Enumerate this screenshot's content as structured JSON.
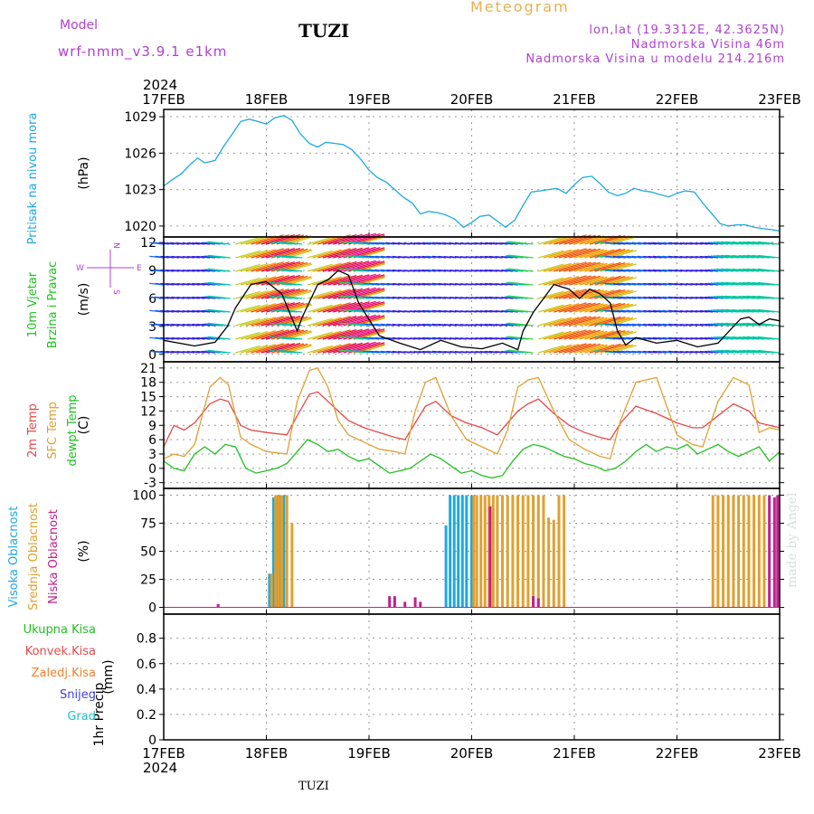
{
  "header": {
    "model_label": "Model",
    "model_name": "wrf-nmm_v3.9.1  e1km",
    "station": "TUZI",
    "meteogram": "Meteogram",
    "lonlat": "lon,lat (19.3312E, 42.3625N)",
    "elevation": "Nadmorska Visina 46m",
    "model_elevation": "Nadmorska Visina u modelu 214.216m",
    "footer_station": "TUZI",
    "made_by": "made by Angel"
  },
  "colors": {
    "pressure": "#1ea8e0",
    "t2m": "#e84848",
    "sfc": "#e0a030",
    "dewpt": "#20c020",
    "high_cloud": "#1ea8e0",
    "mid_cloud": "#e0a030",
    "low_cloud": "#c02090",
    "total_precip": "#20c020",
    "conv_precip": "#e84848",
    "frz_precip": "#f08030",
    "snow": "#4040e0",
    "hail": "#20c0c0"
  },
  "chart_data": {
    "type": "line",
    "x_year": "2024",
    "x_ticks": [
      "17FEB",
      "18FEB",
      "19FEB",
      "20FEB",
      "21FEB",
      "22FEB",
      "23FEB"
    ],
    "x_days": [
      0,
      1,
      2,
      3,
      4,
      5,
      6
    ],
    "panels": [
      {
        "id": "pressure",
        "ylabel_lines": [
          "Pritisak na nivou mora"
        ],
        "units": "(hPa)",
        "ylim": [
          1019.1,
          1029.6
        ],
        "yticks": [
          1020,
          1023,
          1026,
          1029
        ],
        "series": [
          {
            "key": "pressure",
            "x": [
              0,
              0.08,
              0.17,
              0.25,
              0.33,
              0.4,
              0.5,
              0.58,
              0.67,
              0.75,
              0.83,
              0.92,
              1.0,
              1.08,
              1.17,
              1.25,
              1.33,
              1.42,
              1.5,
              1.58,
              1.67,
              1.75,
              1.83,
              1.92,
              2.0,
              2.08,
              2.17,
              2.25,
              2.33,
              2.42,
              2.5,
              2.58,
              2.67,
              2.75,
              2.83,
              2.92,
              3.0,
              3.08,
              3.17,
              3.25,
              3.33,
              3.42,
              3.5,
              3.58,
              3.67,
              3.75,
              3.83,
              3.92,
              4.0,
              4.08,
              4.17,
              4.25,
              4.33,
              4.42,
              4.5,
              4.58,
              4.67,
              4.75,
              4.83,
              4.92,
              5.0,
              5.08,
              5.17,
              5.25,
              5.33,
              5.42,
              5.5,
              5.58,
              5.67,
              5.75,
              5.83,
              5.92,
              6.0
            ],
            "y": [
              1023.3,
              1023.8,
              1024.3,
              1025.0,
              1025.6,
              1025.2,
              1025.4,
              1026.5,
              1027.6,
              1028.6,
              1028.8,
              1028.6,
              1028.4,
              1028.9,
              1029.1,
              1028.7,
              1027.6,
              1026.8,
              1026.5,
              1026.9,
              1026.8,
              1026.7,
              1026.3,
              1025.5,
              1024.6,
              1024.0,
              1023.6,
              1023.0,
              1022.4,
              1021.9,
              1021.0,
              1021.2,
              1021.1,
              1020.9,
              1020.6,
              1019.9,
              1020.3,
              1020.8,
              1020.9,
              1020.4,
              1019.9,
              1020.5,
              1021.7,
              1022.8,
              1022.9,
              1023.0,
              1023.1,
              1022.7,
              1023.4,
              1024.0,
              1024.1,
              1023.5,
              1022.8,
              1022.5,
              1022.7,
              1023.1,
              1022.9,
              1022.8,
              1022.6,
              1022.4,
              1022.7,
              1022.9,
              1022.8,
              1021.9,
              1021.1,
              1020.2,
              1020.0,
              1020.1,
              1020.1,
              1019.9,
              1019.8,
              1019.7,
              1019.6
            ]
          }
        ]
      },
      {
        "id": "wind",
        "ylabel_lines": [
          "10m Vjetar",
          "Brzina i Pravac"
        ],
        "units": "(m/s)",
        "compass": [
          "W",
          "E",
          "N",
          "S"
        ],
        "ylim": [
          -0.8,
          12.6
        ],
        "yticks": [
          0,
          3,
          6,
          9,
          12
        ],
        "series": [
          {
            "key": "wind_speed",
            "x": [
              0,
              0.15,
              0.3,
              0.5,
              0.62,
              0.7,
              0.85,
              1.0,
              1.15,
              1.3,
              1.35,
              1.5,
              1.6,
              1.7,
              1.8,
              1.9,
              2.1,
              2.3,
              2.5,
              2.7,
              2.9,
              3.1,
              3.3,
              3.45,
              3.5,
              3.6,
              3.7,
              3.8,
              3.95,
              4.05,
              4.15,
              4.25,
              4.35,
              4.42,
              4.5,
              4.6,
              4.8,
              5.0,
              5.2,
              5.4,
              5.55,
              5.62,
              5.7,
              5.8,
              5.9,
              6.0
            ],
            "y": [
              1.5,
              1.2,
              0.9,
              1.3,
              3.0,
              5.0,
              7.5,
              7.8,
              6.5,
              2.5,
              4.0,
              7.5,
              8.0,
              9.0,
              8.5,
              5.5,
              2.0,
              1.2,
              0.5,
              1.5,
              0.8,
              0.6,
              1.2,
              0.5,
              2.5,
              4.5,
              6.0,
              7.5,
              7.0,
              6.0,
              7.0,
              6.5,
              5.5,
              2.5,
              1.0,
              1.8,
              1.2,
              1.5,
              0.8,
              1.2,
              3.0,
              3.8,
              4.0,
              3.2,
              3.8,
              3.6
            ]
          }
        ]
      },
      {
        "id": "temperature",
        "ylabel_lines": [
          "2m Temp",
          "SFC Temp",
          "dewpt Temp"
        ],
        "units": "(C)",
        "ylim": [
          -4.2,
          22.3
        ],
        "yticks": [
          -3,
          0,
          3,
          6,
          9,
          12,
          15,
          18,
          21
        ],
        "series": [
          {
            "key": "t2m",
            "x": [
              0,
              0.1,
              0.2,
              0.3,
              0.45,
              0.55,
              0.63,
              0.75,
              0.85,
              1.0,
              1.2,
              1.3,
              1.42,
              1.5,
              1.6,
              1.7,
              1.8,
              1.95,
              2.1,
              2.25,
              2.35,
              2.45,
              2.55,
              2.65,
              2.8,
              2.95,
              3.1,
              3.25,
              3.35,
              3.45,
              3.55,
              3.65,
              3.8,
              3.95,
              4.1,
              4.25,
              4.35,
              4.45,
              4.6,
              4.8,
              5.0,
              5.15,
              5.25,
              5.4,
              5.55,
              5.7,
              5.8,
              5.9,
              6.0
            ],
            "y": [
              4.5,
              9.0,
              8.0,
              9.5,
              13.5,
              14.5,
              14.0,
              9.0,
              8.0,
              7.5,
              7.0,
              11.0,
              15.5,
              16.0,
              14.0,
              12.0,
              10.0,
              8.5,
              7.5,
              6.5,
              6.0,
              9.5,
              13.0,
              14.0,
              11.0,
              9.5,
              8.5,
              7.0,
              9.5,
              12.0,
              13.5,
              14.5,
              11.5,
              9.0,
              7.5,
              6.5,
              6.0,
              9.5,
              13.0,
              11.5,
              9.5,
              8.5,
              8.5,
              11.0,
              13.5,
              12.0,
              9.5,
              9.0,
              8.5
            ]
          },
          {
            "key": "sfc",
            "x": [
              0,
              0.1,
              0.2,
              0.3,
              0.45,
              0.55,
              0.63,
              0.75,
              0.85,
              1.0,
              1.2,
              1.3,
              1.42,
              1.5,
              1.6,
              1.7,
              1.8,
              1.95,
              2.1,
              2.25,
              2.35,
              2.45,
              2.55,
              2.65,
              2.8,
              2.95,
              3.1,
              3.25,
              3.35,
              3.45,
              3.55,
              3.65,
              3.8,
              3.95,
              4.1,
              4.25,
              4.35,
              4.45,
              4.6,
              4.8,
              5.0,
              5.15,
              5.25,
              5.4,
              5.55,
              5.7,
              5.8,
              5.9,
              6.0
            ],
            "y": [
              2.0,
              3.0,
              2.5,
              5.0,
              17.0,
              19.0,
              17.5,
              6.5,
              5.0,
              3.5,
              3.0,
              14.0,
              20.5,
              21.0,
              17.0,
              10.0,
              7.0,
              5.5,
              4.0,
              3.5,
              3.0,
              12.0,
              18.0,
              19.0,
              11.0,
              6.0,
              4.5,
              3.0,
              8.0,
              17.0,
              18.5,
              19.0,
              12.0,
              6.0,
              4.0,
              2.5,
              2.0,
              10.0,
              18.0,
              19.0,
              7.0,
              5.0,
              4.5,
              14.0,
              19.0,
              17.5,
              7.5,
              8.5,
              8.0
            ]
          },
          {
            "key": "dewpt",
            "x": [
              0,
              0.1,
              0.2,
              0.3,
              0.4,
              0.5,
              0.6,
              0.7,
              0.8,
              0.9,
              1.0,
              1.1,
              1.2,
              1.3,
              1.4,
              1.5,
              1.6,
              1.7,
              1.8,
              1.9,
              2.0,
              2.1,
              2.2,
              2.3,
              2.4,
              2.5,
              2.6,
              2.7,
              2.8,
              2.9,
              3.0,
              3.1,
              3.2,
              3.3,
              3.4,
              3.5,
              3.6,
              3.7,
              3.8,
              3.9,
              4.0,
              4.1,
              4.2,
              4.3,
              4.4,
              4.5,
              4.6,
              4.7,
              4.8,
              4.9,
              5.0,
              5.1,
              5.2,
              5.3,
              5.4,
              5.5,
              5.6,
              5.7,
              5.8,
              5.9,
              6.0
            ],
            "y": [
              1.5,
              0.0,
              -0.5,
              3.0,
              4.5,
              3.0,
              5.0,
              4.5,
              0.0,
              -1.0,
              -0.5,
              0.0,
              1.0,
              3.5,
              6.0,
              5.0,
              3.5,
              4.0,
              2.5,
              1.5,
              2.0,
              0.5,
              -1.0,
              -0.5,
              0.0,
              1.5,
              3.0,
              2.0,
              0.5,
              -1.0,
              -0.5,
              -1.5,
              -2.0,
              -1.5,
              1.5,
              4.0,
              5.0,
              4.5,
              3.5,
              2.5,
              2.0,
              1.0,
              0.5,
              -0.5,
              0.0,
              1.5,
              3.5,
              5.0,
              3.5,
              4.5,
              4.0,
              5.0,
              3.0,
              4.0,
              5.0,
              3.5,
              2.5,
              3.5,
              4.5,
              1.5,
              3.5
            ]
          }
        ]
      },
      {
        "id": "cloud",
        "ylabel_lines": [
          "Visoka Oblacnost",
          "Srednja Oblacnost",
          "Niska Oblacnost"
        ],
        "units": "(%)",
        "ylim": [
          -6,
          106
        ],
        "yticks": [
          0,
          25,
          50,
          75,
          100
        ],
        "bars": [
          {
            "key": "high_cloud",
            "x": [
              1.03,
              1.07,
              1.1,
              1.13,
              1.17,
              2.75,
              2.79,
              2.83,
              2.87,
              2.91,
              2.95,
              3.0
            ],
            "values": [
              30,
              98,
              100,
              100,
              100,
              73,
              100,
              100,
              100,
              100,
              100,
              100
            ]
          },
          {
            "key": "mid_cloud",
            "x": [
              1.05,
              1.09,
              1.12,
              1.15,
              1.2,
              1.25,
              3.02,
              3.05,
              3.09,
              3.13,
              3.17,
              3.21,
              3.25,
              3.3,
              3.35,
              3.4,
              3.45,
              3.5,
              3.55,
              3.6,
              3.65,
              3.7,
              3.75,
              3.8,
              3.85,
              3.9,
              5.35,
              5.4,
              5.45,
              5.5,
              5.55,
              5.6,
              5.65,
              5.7,
              5.75,
              5.8,
              5.85
            ],
            "values": [
              30,
              100,
              100,
              100,
              100,
              75,
              100,
              100,
              100,
              100,
              100,
              100,
              100,
              100,
              100,
              100,
              100,
              100,
              100,
              100,
              100,
              100,
              80,
              78,
              100,
              100,
              100,
              100,
              100,
              100,
              100,
              100,
              100,
              100,
              100,
              100,
              100
            ]
          },
          {
            "key": "low_cloud",
            "x": [
              0.53,
              2.2,
              2.25,
              2.35,
              2.45,
              2.5,
              3.18,
              3.6,
              3.65,
              5.9,
              5.95,
              5.98
            ],
            "values": [
              3,
              10,
              10,
              5,
              9,
              5,
              90,
              10,
              8,
              100,
              98,
              100
            ]
          }
        ]
      },
      {
        "id": "precip",
        "ylabel_lines": [
          "1hr Precip"
        ],
        "units": "(mm)",
        "legend": [
          "Ukupna Kisa",
          "Konvek.Kisa",
          "Zaledj.Kisa",
          "Snijeg",
          "Grad"
        ],
        "ylim": [
          0,
          0.99
        ],
        "yticks": [
          0,
          0.2,
          0.4,
          0.6,
          0.8
        ],
        "series": []
      }
    ]
  }
}
